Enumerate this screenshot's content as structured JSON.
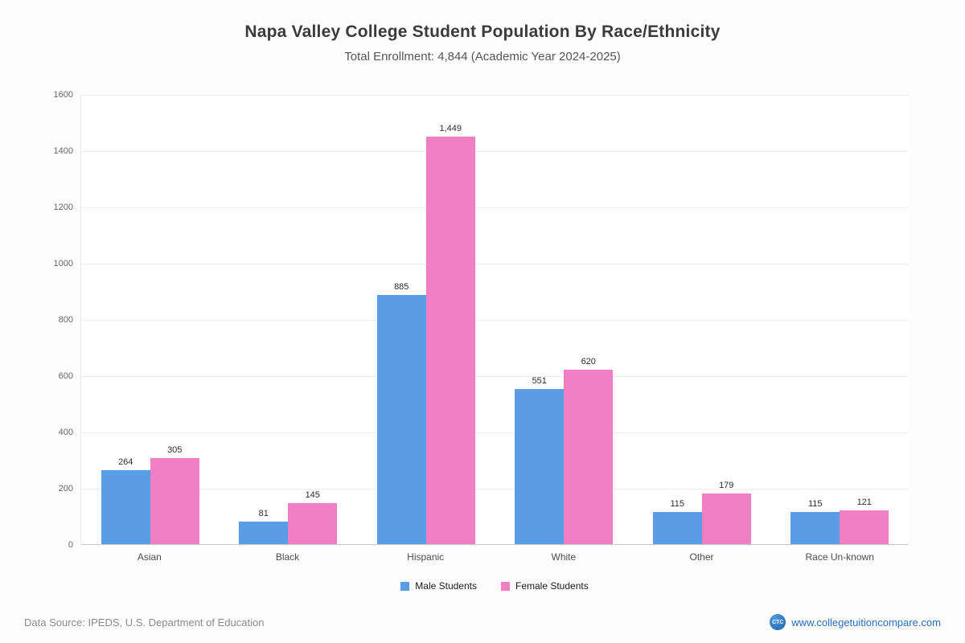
{
  "title": "Napa Valley College Student Population By Race/Ethnicity",
  "subtitle": "Total Enrollment: 4,844 (Academic Year 2024-2025)",
  "chart_data": {
    "type": "bar",
    "title": "Napa Valley College Student Population By Race/Ethnicity",
    "subtitle": "Total Enrollment: 4,844 (Academic Year 2024-2025)",
    "categories": [
      "Asian",
      "Black",
      "Hispanic",
      "White",
      "Other",
      "Race Un-known"
    ],
    "series": [
      {
        "name": "Male Students",
        "color": "#5a9de6",
        "values": [
          264,
          81,
          885,
          551,
          115,
          115
        ],
        "labels": [
          "264",
          "81",
          "885",
          "551",
          "115",
          "115"
        ]
      },
      {
        "name": "Female Students",
        "color": "#f07fc3",
        "values": [
          305,
          145,
          1449,
          620,
          179,
          121
        ],
        "labels": [
          "305",
          "145",
          "1,449",
          "620",
          "179",
          "121"
        ]
      }
    ],
    "ylim": [
      0,
      1600
    ],
    "ytick_step": 200,
    "grid": true,
    "legend_position": "bottom",
    "xlabel": "",
    "ylabel": ""
  },
  "footer": {
    "source": "Data Source: IPEDS, U.S. Department of Education",
    "logo": "CTC",
    "site": "www.collegetuitioncompare.com"
  }
}
